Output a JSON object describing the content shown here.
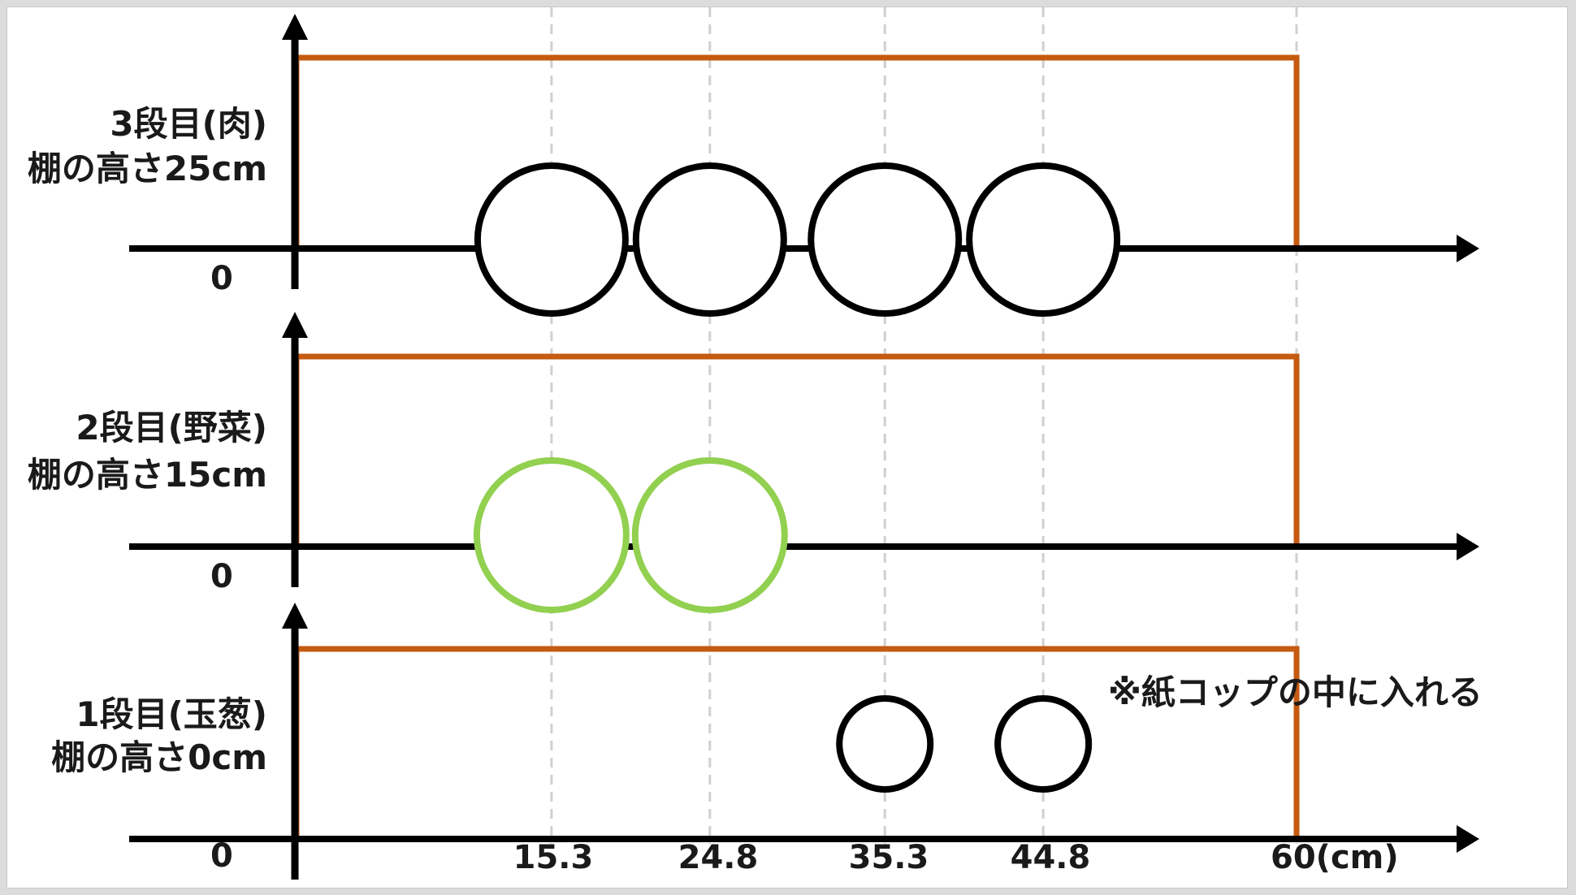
{
  "colors": {
    "axis": "#000000",
    "shelf": "#c55a11",
    "grid": "#d0d0d0",
    "meat_circle": "#000000",
    "veg_circle": "#92d050",
    "onion_circle": "#000000"
  },
  "shelves": [
    {
      "id": "3",
      "title": "3段目(肉)",
      "height_label": "棚の高さ25cm",
      "zero_label": "0",
      "circle_color_key": "meat_circle",
      "items": [
        15.3,
        24.8,
        35.3,
        44.8
      ]
    },
    {
      "id": "2",
      "title": "2段目(野菜)",
      "height_label": "棚の高さ15cm",
      "zero_label": "0",
      "circle_color_key": "veg_circle",
      "items": [
        15.3,
        24.8
      ]
    },
    {
      "id": "1",
      "title": "1段目(玉葱)",
      "height_label": "棚の高さ0cm",
      "zero_label": "0",
      "circle_color_key": "onion_circle",
      "items": [
        35.3,
        44.8
      ]
    }
  ],
  "x_ticks": [
    "15.3",
    "24.8",
    "35.3",
    "44.8"
  ],
  "x_tick_values": [
    15.3,
    24.8,
    35.3,
    44.8
  ],
  "x_end_label": "60(cm)",
  "x_max": 60,
  "note": "※紙コップの中に入れる"
}
